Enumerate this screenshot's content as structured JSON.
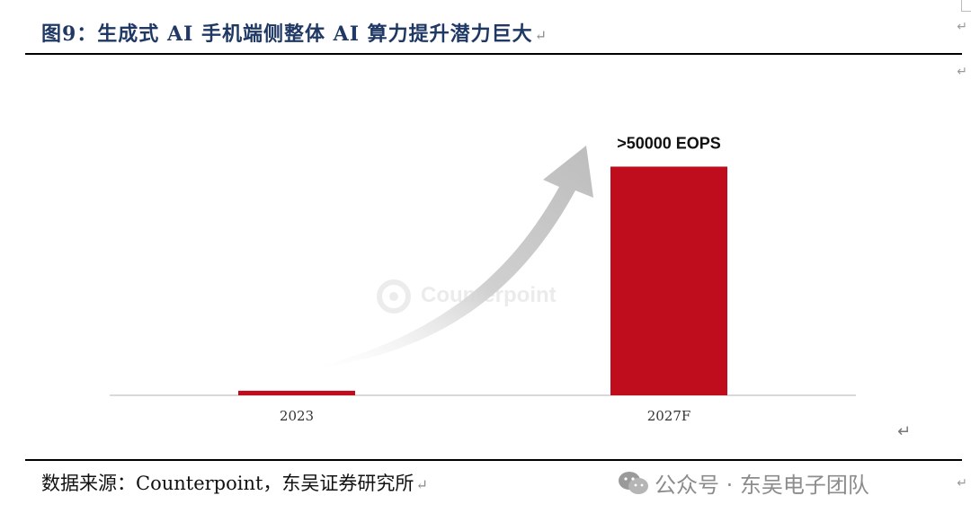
{
  "figure": {
    "title": "图9：生成式 AI 手机端侧整体 AI 算力提升潜力巨大",
    "return_mark": "↵",
    "source": "数据来源：Counterpoint，东吴证券研究所",
    "watermark_text": "公众号 · 东吴电子团队",
    "watermark_icon": "wechat-icon"
  },
  "colors": {
    "title": "#1f3864",
    "bar": "#c00d1e",
    "axis": "#d9d9d9",
    "arrow": "#c8c8c8",
    "background_logo": "#e6e6e6"
  },
  "chart_data": {
    "type": "bar",
    "categories": [
      "2023",
      "2027F"
    ],
    "values": [
      1000,
      50000
    ],
    "data_labels": [
      "",
      ">50000 EOPS"
    ],
    "ylim": [
      0,
      55000
    ],
    "title": "",
    "xlabel": "",
    "ylabel": "",
    "grid": false,
    "annotations": [
      "Counterpoint"
    ]
  }
}
